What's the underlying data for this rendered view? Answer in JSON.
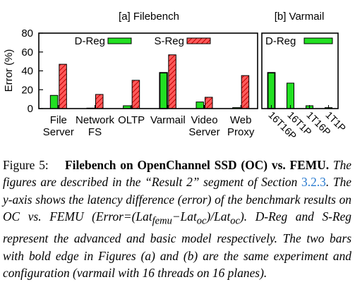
{
  "chart_data": [
    {
      "type": "bar",
      "title": "[a] Filebench",
      "ylabel": "Error (%)",
      "ylim": [
        0,
        80
      ],
      "yticks": [
        "0",
        "20",
        "40",
        "60",
        "80"
      ],
      "categories": [
        [
          "File",
          "Server"
        ],
        [
          "Network",
          "FS"
        ],
        [
          "OLTP"
        ],
        [
          "Varmail"
        ],
        [
          "Video",
          "Server"
        ],
        [
          "Web",
          "Proxy"
        ]
      ],
      "series": [
        {
          "name": "D-Reg",
          "color": "#22e022",
          "pattern": "solid",
          "values": [
            14,
            0.5,
            3,
            38,
            7,
            1
          ]
        },
        {
          "name": "S-Reg",
          "color": "#e02020",
          "pattern": "hatch",
          "values": [
            47,
            15,
            30,
            57,
            12,
            35
          ]
        }
      ],
      "legend": "top"
    },
    {
      "type": "bar",
      "title": "[b] Varmail",
      "ylim": [
        0,
        80
      ],
      "categories": [
        "16T16P",
        "16T1P",
        "1T16P",
        "1T1P"
      ],
      "series": [
        {
          "name": "D-Reg",
          "color": "#22e022",
          "pattern": "solid",
          "values": [
            38,
            27,
            3,
            1
          ]
        }
      ],
      "legend": "top"
    }
  ],
  "caption": {
    "label": "Figure 5:",
    "title": "Filebench on OpenChannel SSD (OC) vs. FEMU.",
    "text1": "The figures are described in the “Result 2” segment of Section",
    "ref": "3.2.3",
    "text2": ". The y-axis shows the latency difference (error) of the benchmark results on OC vs. FEMU",
    "formula": "(Error=(Lat",
    "sub1": "femu",
    "formula_mid": "−Lat",
    "sub2": "oc",
    "formula_mid2": ")/Lat",
    "sub3": "oc",
    "formula_end": ").",
    "text3": "D-Reg and S-Reg represent the advanced and basic model respectively. The two bars with bold edge in Figures (a) and (b) are the same experiment and configuration (varmail with 16 threads on 16 planes)."
  }
}
